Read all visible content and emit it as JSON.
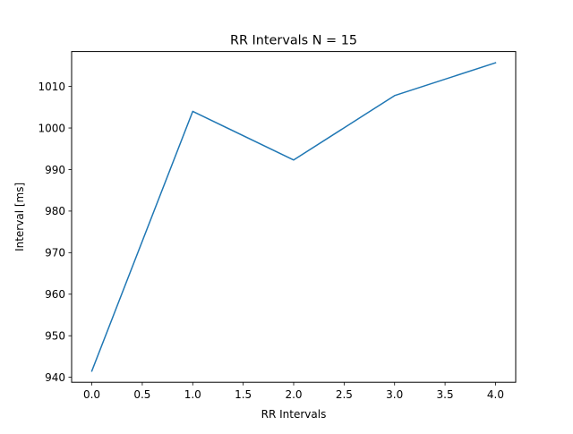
{
  "chart_data": {
    "type": "line",
    "title": "RR Intervals N = 15",
    "xlabel": "RR Intervals",
    "ylabel": "Interval [ms]",
    "x": [
      0,
      1,
      2,
      3,
      4
    ],
    "series": [
      {
        "values": [
          941.5,
          1004.0,
          992.3,
          1007.8,
          1015.7
        ],
        "color": "#1f77b4"
      }
    ],
    "xlim": [
      -0.2,
      4.2
    ],
    "ylim": [
      938.8,
      1018.4
    ],
    "xticks": [
      0.0,
      0.5,
      1.0,
      1.5,
      2.0,
      2.5,
      3.0,
      3.5,
      4.0
    ],
    "xtick_labels": [
      "0.0",
      "0.5",
      "1.0",
      "1.5",
      "2.0",
      "2.5",
      "3.0",
      "3.5",
      "4.0"
    ],
    "yticks": [
      940,
      950,
      960,
      970,
      980,
      990,
      1000,
      1010
    ],
    "ytick_labels": [
      "940",
      "950",
      "960",
      "970",
      "980",
      "990",
      "1000",
      "1010"
    ],
    "grid": false,
    "legend": false
  }
}
